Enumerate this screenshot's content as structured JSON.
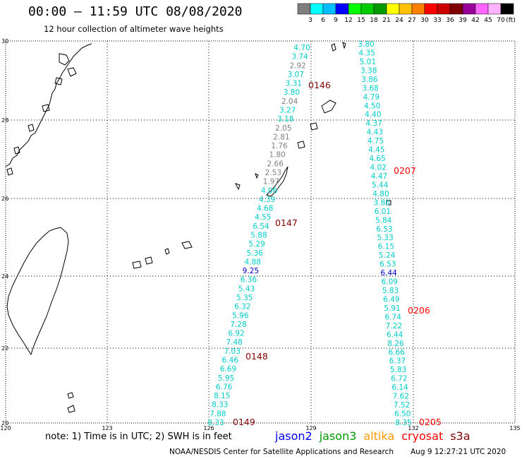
{
  "header": {
    "title": "00:00 – 11:59 UTC 08/08/2020",
    "subtitle": "12 hour collection of altimeter wave heights"
  },
  "colorbar": {
    "unit": "(ft)",
    "colors": [
      "#7f7f7f",
      "#00ffff",
      "#00bfff",
      "#0000ff",
      "#00ff00",
      "#00cc00",
      "#009900",
      "#ffff00",
      "#ffc000",
      "#ff8000",
      "#ff0000",
      "#cc0000",
      "#800000",
      "#990099",
      "#ff66ff",
      "#ffb3ff",
      "#000000"
    ],
    "labels": [
      "3",
      "6",
      "9",
      "12",
      "15",
      "18",
      "21",
      "24",
      "27",
      "30",
      "33",
      "36",
      "39",
      "42",
      "45",
      "70"
    ]
  },
  "axes": {
    "lat_labels": [
      "30",
      "28",
      "26",
      "24",
      "22",
      "20"
    ],
    "lon_labels": [
      "120",
      "123",
      "126",
      "129",
      "132",
      "135"
    ]
  },
  "tracks": {
    "west": {
      "values": [
        "4.70",
        "3.74",
        "2.92",
        "3.07",
        "3.31",
        "3.80",
        "2.04",
        "3.27",
        "3.18",
        "2.05",
        "2.81",
        "1.76",
        "1.80",
        "2.66",
        "2.53",
        "1.97",
        "4.06",
        "4.39",
        "4.68",
        "4.55",
        "6.54",
        "5.88",
        "5.29",
        "5.36",
        "4.88",
        "9.25",
        "6.36",
        "5.43",
        "5.35",
        "6.32",
        "5.96",
        "7.28",
        "6.92",
        "7.48",
        "7.03",
        "6.46",
        "6.69",
        "5.95",
        "6.76",
        "8.15",
        "8.33",
        "7.88",
        "8.33"
      ],
      "colors": [
        "#00cccc",
        "#00cccc",
        "#7f7f7f",
        "#00cccc",
        "#00cccc",
        "#00cccc",
        "#7f7f7f",
        "#00cccc",
        "#00cccc",
        "#7f7f7f",
        "#7f7f7f",
        "#7f7f7f",
        "#7f7f7f",
        "#7f7f7f",
        "#7f7f7f",
        "#7f7f7f",
        "#00cccc",
        "#00cccc",
        "#00cccc",
        "#00cccc",
        "#00cccc",
        "#00cccc",
        "#00cccc",
        "#00cccc",
        "#00cccc",
        "#0000cc",
        "#00cccc",
        "#00cccc",
        "#00cccc",
        "#00cccc",
        "#00cccc",
        "#00cccc",
        "#00cccc",
        "#00cccc",
        "#00cccc",
        "#00cccc",
        "#00cccc",
        "#00cccc",
        "#00cccc",
        "#00cccc",
        "#00cccc",
        "#00cccc",
        "#00cccc"
      ]
    },
    "east": {
      "values": [
        "3.80",
        "4.35",
        "5.01",
        "3.38",
        "3.86",
        "3.68",
        "4.79",
        "4.50",
        "4.40",
        "4.37",
        "4.43",
        "4.75",
        "4.45",
        "4.65",
        "4.02",
        "4.47",
        "5.44",
        "4.80",
        "3.80",
        "6.01",
        "5.84",
        "6.53",
        "5.33",
        "6.15",
        "5.24",
        "6.53",
        "6.44",
        "6.09",
        "5.83",
        "6.49",
        "5.91",
        "6.74",
        "7.22",
        "6.44",
        "8.26",
        "6.66",
        "6.37",
        "5.83",
        "6.72",
        "6.14",
        "7.62",
        "7.52",
        "6.50",
        "8.35"
      ],
      "colors": [
        "#00cccc",
        "#00cccc",
        "#00cccc",
        "#00cccc",
        "#00cccc",
        "#00cccc",
        "#00cccc",
        "#00cccc",
        "#00cccc",
        "#00cccc",
        "#00cccc",
        "#00cccc",
        "#00cccc",
        "#00cccc",
        "#00cccc",
        "#00cccc",
        "#00cccc",
        "#00cccc",
        "#00cccc",
        "#00cccc",
        "#00cccc",
        "#00cccc",
        "#00cccc",
        "#00cccc",
        "#00cccc",
        "#00cccc",
        "#0000cc",
        "#00cccc",
        "#00cccc",
        "#00cccc",
        "#00cccc",
        "#00cccc",
        "#00cccc",
        "#00cccc",
        "#00cccc",
        "#00cccc",
        "#00cccc",
        "#00cccc",
        "#00cccc",
        "#00cccc",
        "#00cccc",
        "#00cccc",
        "#00cccc",
        "#00cccc"
      ]
    }
  },
  "time_labels": [
    {
      "text": "0146",
      "color": "#800000"
    },
    {
      "text": "0147",
      "color": "#800000"
    },
    {
      "text": "0148",
      "color": "#800000"
    },
    {
      "text": "0149",
      "color": "#800000"
    },
    {
      "text": "0207",
      "color": "#ff0000"
    },
    {
      "text": "0206",
      "color": "#ff0000"
    },
    {
      "text": "0205",
      "color": "#ff0000"
    }
  ],
  "footer": {
    "note": "note:  1) Time is in UTC; 2) SWH is in feet",
    "satellites": [
      {
        "name": "jason2",
        "color": "#0000ff"
      },
      {
        "name": "jason3",
        "color": "#009900"
      },
      {
        "name": "altika",
        "color": "#ff9900"
      },
      {
        "name": "cryosat",
        "color": "#ff0000"
      },
      {
        "name": "s3a",
        "color": "#800000"
      }
    ],
    "credit": "NOAA/NESDIS Center for Satellite Applications and Research",
    "timestamp": "Aug  9 12:27:21 UTC 2020"
  }
}
